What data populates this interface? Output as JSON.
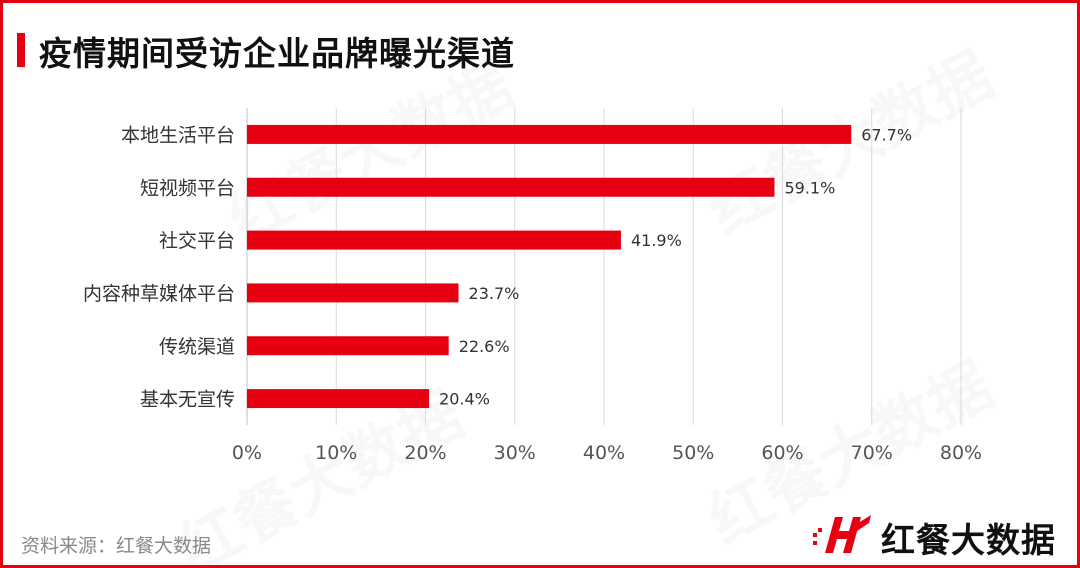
{
  "title": "疫情期间受访企业品牌曝光渠道",
  "source": "资料来源：红餐大数据",
  "brand": {
    "name": "红餐大数据",
    "logo_icon": "hongcan-logo-icon",
    "color": "#e60012"
  },
  "watermark": "红餐大数据",
  "chart_data": {
    "type": "bar",
    "orientation": "horizontal",
    "categories": [
      "本地生活平台",
      "短视频平台",
      "社交平台",
      "内容种草媒体平台",
      "传统渠道",
      "基本无宣传"
    ],
    "values": [
      67.7,
      59.1,
      41.9,
      23.7,
      22.6,
      20.4
    ],
    "value_labels": [
      "67.7%",
      "59.1%",
      "41.9%",
      "23.7%",
      "22.6%",
      "20.4%"
    ],
    "xlim": [
      0,
      80
    ],
    "xticks": [
      0,
      10,
      20,
      30,
      40,
      50,
      60,
      70,
      80
    ],
    "xtick_labels": [
      "0%",
      "10%",
      "20%",
      "30%",
      "40%",
      "50%",
      "60%",
      "70%",
      "80%"
    ],
    "grid": true,
    "bar_color": "#e60012"
  }
}
